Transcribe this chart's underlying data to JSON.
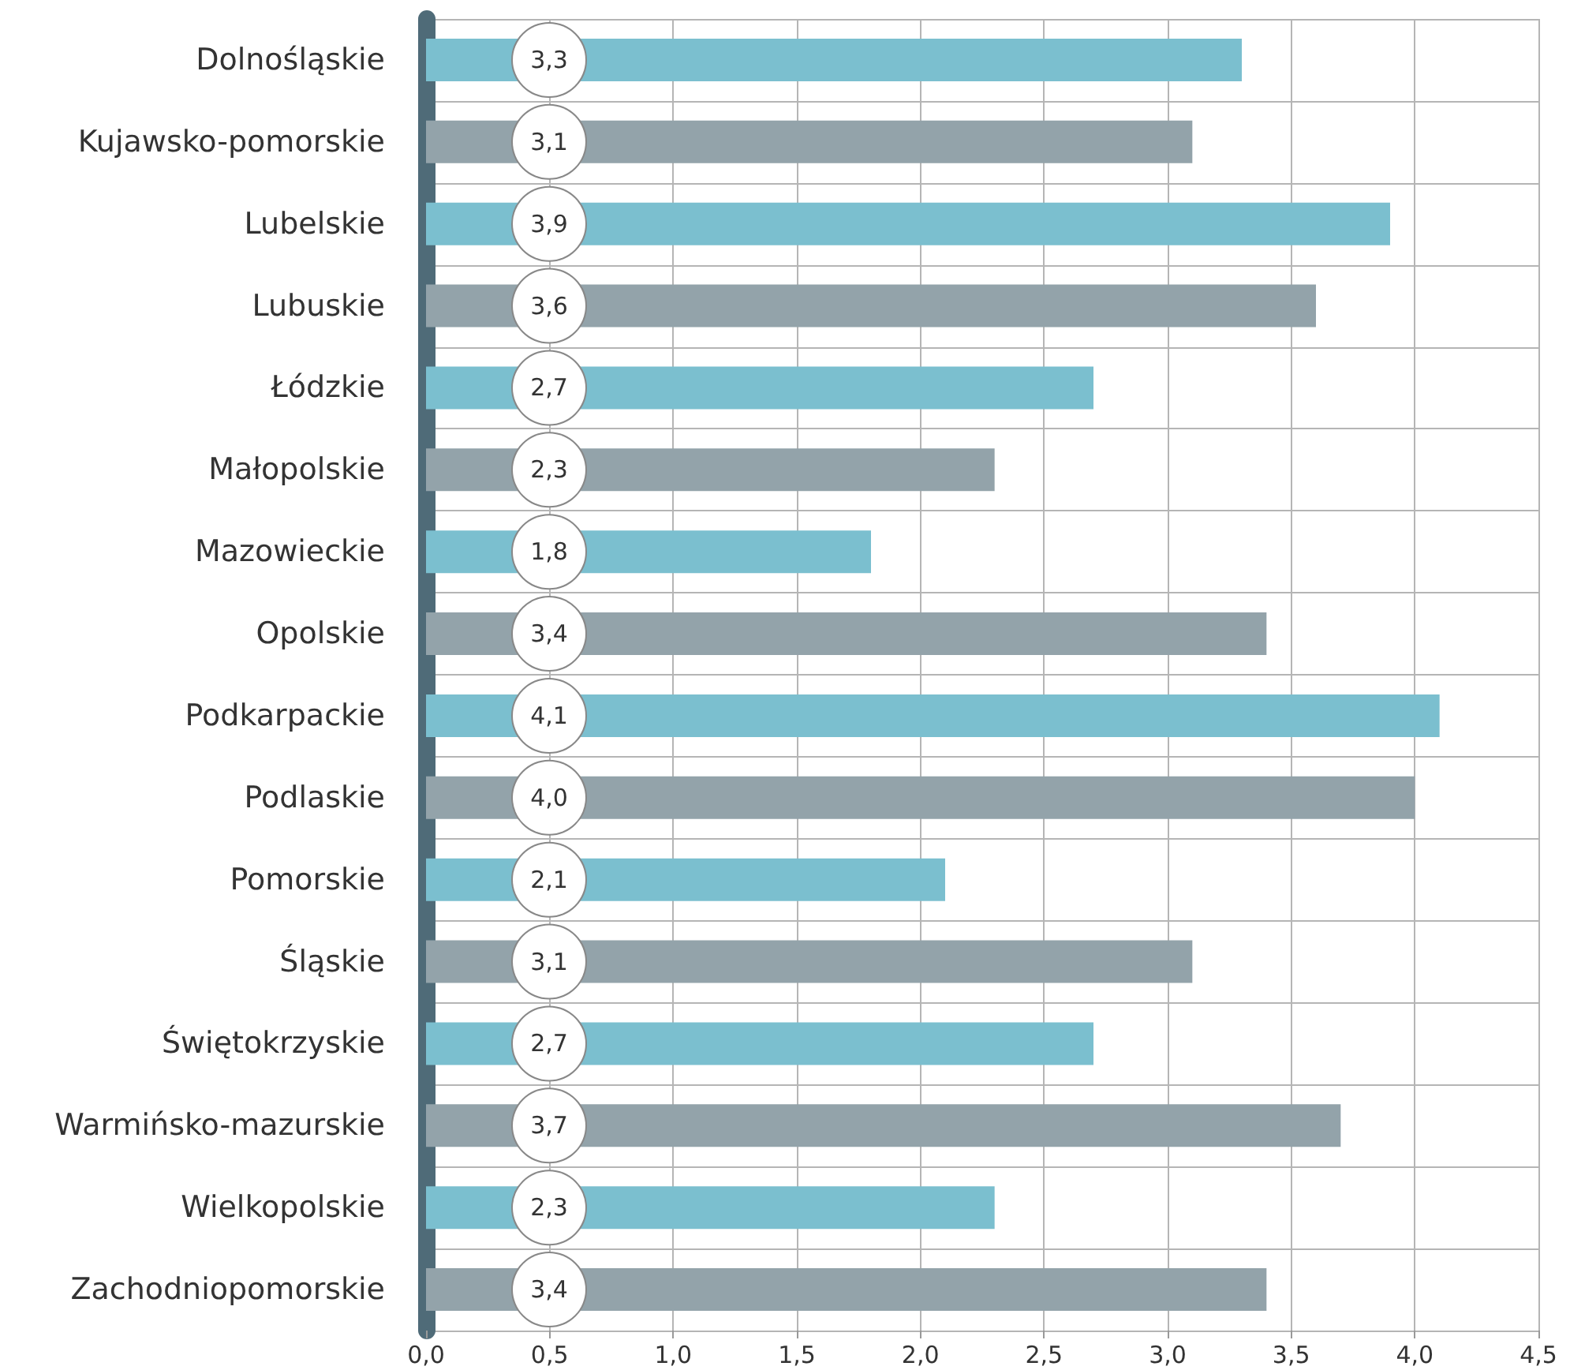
{
  "chart_data": {
    "type": "bar",
    "orientation": "horizontal",
    "categories": [
      "Dolnośląskie",
      "Kujawsko-pomorskie",
      "Lubelskie",
      "Lubuskie",
      "Łódzkie",
      "Małopolskie",
      "Mazowieckie",
      "Opolskie",
      "Podkarpackie",
      "Podlaskie",
      "Pomorskie",
      "Śląskie",
      "Świętokrzyskie",
      "Warmińsko-mazurskie",
      "Wielkopolskie",
      "Zachodniopomorskie"
    ],
    "values": [
      3.3,
      3.1,
      3.9,
      3.6,
      2.7,
      2.3,
      1.8,
      3.4,
      4.1,
      4.0,
      2.1,
      3.1,
      2.7,
      3.7,
      2.3,
      3.4
    ],
    "value_labels": [
      "3,3",
      "3,1",
      "3,9",
      "3,6",
      "2,7",
      "2,3",
      "1,8",
      "3,4",
      "4,1",
      "4,0",
      "2,1",
      "3,1",
      "2,7",
      "3,7",
      "2,3",
      "3,4"
    ],
    "colors": [
      "#7bbfcf",
      "#93a3aa",
      "#7bbfcf",
      "#93a3aa",
      "#7bbfcf",
      "#93a3aa",
      "#7bbfcf",
      "#93a3aa",
      "#7bbfcf",
      "#93a3aa",
      "#7bbfcf",
      "#93a3aa",
      "#7bbfcf",
      "#93a3aa",
      "#7bbfcf",
      "#93a3aa"
    ],
    "xlim": [
      0,
      4.5
    ],
    "xticks": [
      {
        "value": 0,
        "label": "0,0"
      },
      {
        "value": 0.5,
        "label": "0,5"
      },
      {
        "value": 1,
        "label": "1,0"
      },
      {
        "value": 1.5,
        "label": "1,5"
      },
      {
        "value": 2,
        "label": "2,0"
      },
      {
        "value": 2.5,
        "label": "2,5"
      },
      {
        "value": 3,
        "label": "3,0"
      },
      {
        "value": 3.5,
        "label": "3,5"
      },
      {
        "value": 4,
        "label": "4,0"
      },
      {
        "value": 4.5,
        "label": "4,5"
      }
    ],
    "grid": true
  }
}
